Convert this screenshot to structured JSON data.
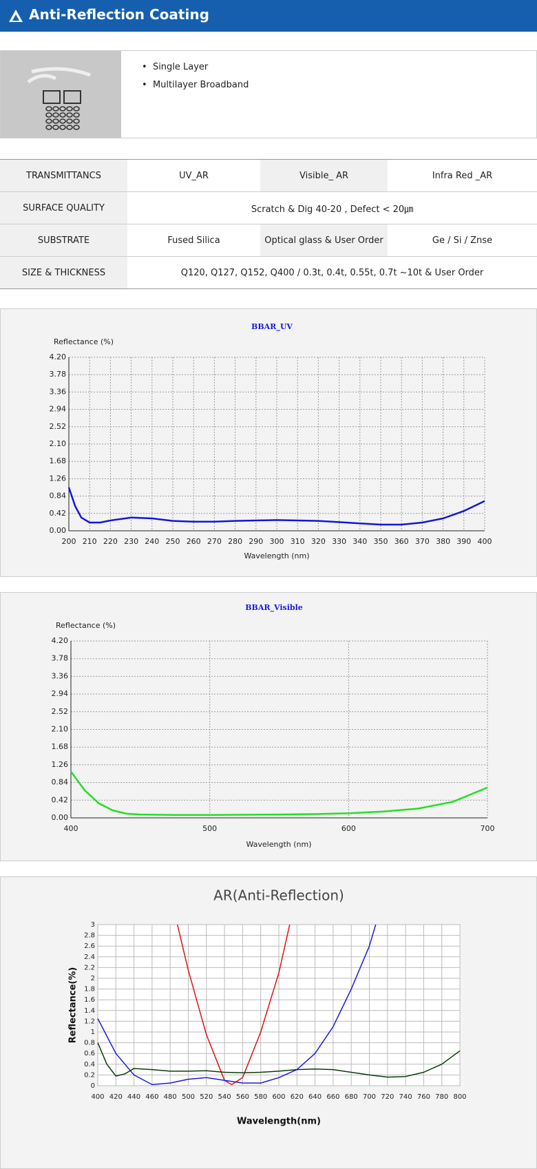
{
  "header": {
    "title": "Anti-Reflection Coating"
  },
  "features": [
    "Single Layer",
    "Multilayer Broadband"
  ],
  "table": {
    "rows": [
      [
        "TRANSMITTANCS",
        "UV_AR",
        "Visible_ AR",
        "Infra Red _AR"
      ],
      [
        "SURFACE QUALITY",
        "Scratch & Dig 40-20 ,  Defect < 20㎛"
      ],
      [
        "SUBSTRATE",
        "Fused Silica",
        "Optical glass & User Order",
        "Ge  / Si / Znse"
      ],
      [
        "SIZE &   THICKNESS",
        "Q120, Q127, Q152, Q400  /  0.3t, 0.4t, 0.55t, 0.7t ~10t & User Order"
      ]
    ]
  },
  "chart_data": [
    {
      "type": "line",
      "title": "BBAR_UV",
      "y_label": "Reflectance (%)",
      "x_label": "Wavelength (nm)",
      "xlim": [
        200,
        400
      ],
      "xticks": [
        200,
        210,
        220,
        230,
        240,
        250,
        260,
        270,
        280,
        290,
        300,
        310,
        320,
        330,
        340,
        350,
        360,
        370,
        380,
        390,
        400
      ],
      "ylim": [
        0,
        4.2
      ],
      "yticks": [
        {
          "value": 0,
          "label": "0.00"
        },
        0.42,
        0.84,
        1.26,
        1.68,
        {
          "value": 2.1,
          "label": "2.10"
        },
        2.52,
        2.94,
        3.36,
        3.78,
        {
          "value": 4.2,
          "label": "4.20"
        }
      ],
      "grid": true,
      "series": [
        {
          "color": "#1414dc",
          "x": [
            200,
            203,
            206,
            210,
            215,
            220,
            230,
            240,
            250,
            260,
            270,
            280,
            290,
            300,
            310,
            320,
            330,
            340,
            350,
            360,
            370,
            380,
            390,
            400
          ],
          "values": [
            1.05,
            0.6,
            0.32,
            0.2,
            0.2,
            0.25,
            0.32,
            0.3,
            0.24,
            0.22,
            0.22,
            0.24,
            0.25,
            0.26,
            0.25,
            0.24,
            0.21,
            0.18,
            0.15,
            0.15,
            0.2,
            0.3,
            0.48,
            0.72
          ]
        }
      ]
    },
    {
      "type": "line",
      "title": "BBAR_Visible",
      "y_label": "Reflectance (%)",
      "x_label": "Wavelength (nm)",
      "xlim": [
        400,
        700
      ],
      "xticks": [
        400,
        500,
        600,
        700
      ],
      "ylim": [
        0,
        4.2
      ],
      "yticks": [
        {
          "value": 0,
          "label": "0.00"
        },
        0.42,
        0.84,
        1.26,
        1.68,
        {
          "value": 2.1,
          "label": "2.10"
        },
        2.52,
        2.94,
        3.36,
        3.78,
        {
          "value": 4.2,
          "label": "4.20"
        }
      ],
      "grid": true,
      "series": [
        {
          "color": "#22e022",
          "x": [
            400,
            410,
            420,
            430,
            440,
            450,
            475,
            500,
            550,
            575,
            600,
            625,
            650,
            675,
            700
          ],
          "values": [
            1.1,
            0.65,
            0.35,
            0.18,
            0.1,
            0.08,
            0.07,
            0.07,
            0.08,
            0.09,
            0.11,
            0.15,
            0.22,
            0.38,
            0.72
          ]
        }
      ]
    },
    {
      "type": "line",
      "title": "AR(Anti-Reflection)",
      "y_label": "Reflectance(%)",
      "x_label": "Wavelength(nm)",
      "xlim": [
        400,
        800
      ],
      "xticks": [
        400,
        420,
        440,
        460,
        480,
        500,
        520,
        540,
        560,
        580,
        600,
        620,
        640,
        660,
        680,
        700,
        720,
        740,
        760,
        780,
        800
      ],
      "ylim": [
        0,
        3
      ],
      "yticks": [
        0,
        0.2,
        0.4,
        0.6,
        0.8,
        1,
        1.2,
        1.4,
        1.6,
        1.8,
        2,
        2.2,
        2.4,
        2.6,
        2.8,
        3
      ],
      "grid": true,
      "series": [
        {
          "color": "#e01010",
          "x": [
            488,
            500,
            520,
            540,
            548,
            560,
            580,
            600,
            612
          ],
          "values": [
            3,
            2.15,
            0.95,
            0.1,
            0.02,
            0.15,
            1.0,
            2.1,
            3
          ]
        },
        {
          "color": "#1a1ae0",
          "x": [
            400,
            420,
            440,
            460,
            480,
            500,
            520,
            540,
            560,
            580,
            600,
            620,
            640,
            660,
            680,
            700,
            707
          ],
          "values": [
            1.25,
            0.6,
            0.2,
            0.02,
            0.05,
            0.12,
            0.15,
            0.1,
            0.05,
            0.05,
            0.15,
            0.3,
            0.6,
            1.1,
            1.8,
            2.6,
            3
          ]
        },
        {
          "color": "#0a3a0a",
          "x": [
            400,
            410,
            420,
            430,
            440,
            460,
            480,
            500,
            520,
            540,
            560,
            580,
            600,
            620,
            640,
            660,
            680,
            700,
            720,
            740,
            760,
            780,
            800
          ],
          "values": [
            0.8,
            0.4,
            0.18,
            0.22,
            0.32,
            0.3,
            0.27,
            0.27,
            0.28,
            0.25,
            0.24,
            0.25,
            0.27,
            0.3,
            0.31,
            0.3,
            0.25,
            0.2,
            0.16,
            0.17,
            0.25,
            0.4,
            0.65
          ]
        }
      ]
    }
  ]
}
